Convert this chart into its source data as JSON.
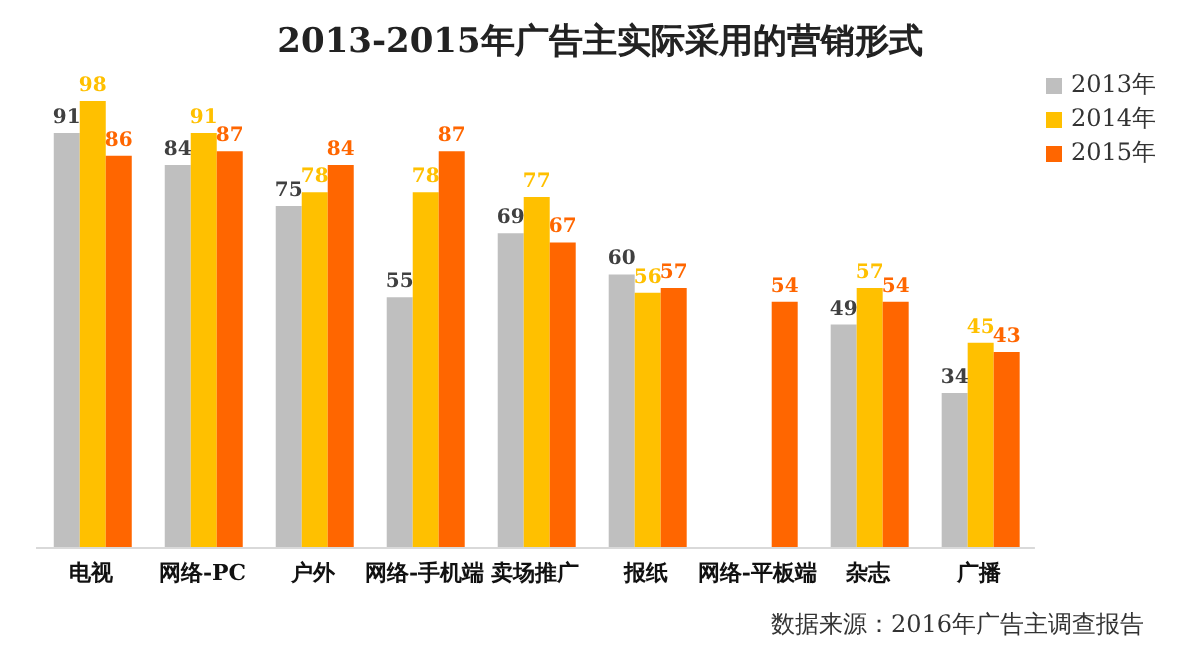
{
  "chart_data": {
    "type": "bar",
    "title": "2013-2015年广告主实际采用的营销形式",
    "categories": [
      "电视",
      "网络-PC",
      "户外",
      "网络-手机端",
      "卖场推广",
      "报纸",
      "网络-平板端",
      "杂志",
      "广播"
    ],
    "series": [
      {
        "name": "2013年",
        "color": "#bfbfbf",
        "values": [
          91,
          84,
          75,
          55,
          69,
          60,
          null,
          49,
          34
        ]
      },
      {
        "name": "2014年",
        "color": "#ffc000",
        "values": [
          98,
          91,
          78,
          78,
          77,
          56,
          null,
          57,
          45
        ]
      },
      {
        "name": "2015年",
        "color": "#ff6600",
        "values": [
          86,
          87,
          84,
          87,
          67,
          57,
          54,
          54,
          43
        ]
      }
    ],
    "data_labels": true,
    "legend": "top right",
    "grid": false,
    "annotations": [
      "数据来源：2016年广告主调查报告"
    ]
  }
}
